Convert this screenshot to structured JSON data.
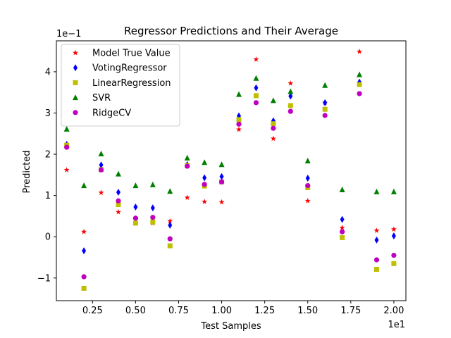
{
  "chart_data": {
    "type": "scatter",
    "title": "Regressor Predictions and Their Average",
    "xlabel": "Test Samples",
    "ylabel": "Predicted",
    "x_offset_label": "1e1",
    "y_offset_label": "1e−1",
    "xlim": [
      0.4,
      20.7
    ],
    "ylim": [
      -1.55,
      4.75
    ],
    "x_ticks": [
      2.5,
      5.0,
      7.5,
      10.0,
      12.5,
      15.0,
      17.5,
      20.0
    ],
    "x_tick_labels": [
      "0.25",
      "0.50",
      "0.75",
      "1.00",
      "1.25",
      "1.50",
      "1.75",
      "2.00"
    ],
    "y_ticks": [
      -1,
      0,
      1,
      2,
      3,
      4
    ],
    "y_tick_labels": [
      "−1",
      "0",
      "1",
      "2",
      "3",
      "4"
    ],
    "grid": false,
    "legend_position": "top-left",
    "x": [
      1,
      2,
      3,
      4,
      5,
      6,
      7,
      8,
      9,
      10,
      11,
      12,
      13,
      14,
      15,
      16,
      17,
      18,
      19,
      20
    ],
    "series": [
      {
        "name": "Model True Value",
        "marker": "star",
        "color": "#ff0000",
        "values": [
          1.62,
          0.12,
          1.07,
          0.6,
          0.45,
          0.33,
          0.38,
          0.95,
          0.85,
          0.84,
          2.6,
          4.3,
          2.38,
          3.72,
          0.87,
          3.25,
          0.22,
          4.49,
          0.15,
          0.18
        ]
      },
      {
        "name": "VotingRegressor",
        "marker": "thin_diamond",
        "color": "#0000ff",
        "values": [
          2.24,
          -0.34,
          1.74,
          1.08,
          0.72,
          0.7,
          0.28,
          1.75,
          1.43,
          1.46,
          2.93,
          3.61,
          2.81,
          3.41,
          1.42,
          3.25,
          0.42,
          3.75,
          -0.08,
          0.02
        ]
      },
      {
        "name": "LinearRegression",
        "marker": "square",
        "color": "#bfbf00",
        "values": [
          2.22,
          -1.25,
          1.63,
          0.78,
          0.33,
          0.36,
          -0.22,
          1.73,
          1.23,
          1.33,
          2.84,
          3.42,
          2.74,
          3.18,
          1.19,
          3.09,
          -0.02,
          3.69,
          -0.79,
          -0.65
        ]
      },
      {
        "name": "SVR",
        "marker": "triangle",
        "color": "#008000",
        "values": [
          2.61,
          1.24,
          2.01,
          1.52,
          1.24,
          1.26,
          1.1,
          1.91,
          1.8,
          1.75,
          3.45,
          3.84,
          3.3,
          3.52,
          1.84,
          3.67,
          1.14,
          3.93,
          1.09,
          1.09
        ]
      },
      {
        "name": "RidgeCV",
        "marker": "circle",
        "color": "#bf00bf",
        "values": [
          2.17,
          -0.97,
          1.62,
          0.87,
          0.45,
          0.47,
          -0.05,
          1.71,
          1.27,
          1.33,
          2.73,
          3.25,
          2.63,
          3.04,
          1.24,
          2.94,
          0.12,
          3.47,
          -0.56,
          -0.45
        ]
      }
    ]
  }
}
